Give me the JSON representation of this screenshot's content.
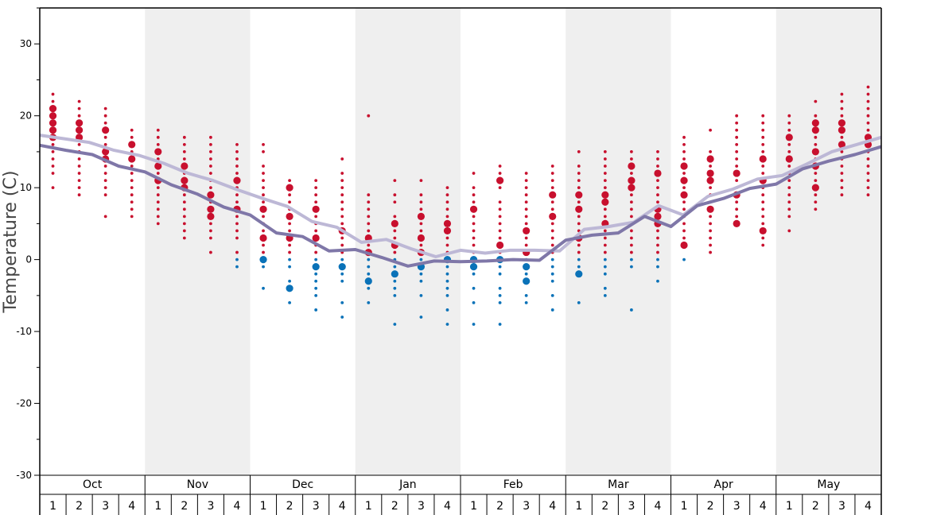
{
  "chart_data": {
    "type": "scatter",
    "ylabel": "Temperature (C)",
    "ylim": [
      -30,
      35
    ],
    "yticks": [
      30,
      20,
      10,
      0,
      -10,
      -20,
      -30
    ],
    "months": [
      "Oct",
      "Nov",
      "Dec",
      "Jan",
      "Feb",
      "Mar",
      "Apr",
      "May"
    ],
    "weeks": [
      "1",
      "2",
      "3",
      "4"
    ],
    "colors": {
      "warm": "#c8102e",
      "cold": "#0a72b8",
      "line_dark": "#7f77a8",
      "line_light": "#bdb8d6",
      "band": "#efefef"
    },
    "lines": [
      {
        "style": "light",
        "values": [
          17.3,
          16.8,
          16.3,
          15.2,
          14.5,
          13.4,
          12.0,
          11.0,
          9.7,
          8.5,
          7.4,
          5.3,
          4.5,
          2.4,
          2.8,
          1.5,
          0.4,
          1.3,
          0.9,
          1.3,
          1.3,
          1.2,
          4.2,
          4.6,
          5.2,
          7.5,
          6.2,
          8.8,
          9.8,
          11.2,
          11.7,
          13.3,
          15.0,
          16.0,
          17.0
        ]
      },
      {
        "style": "dark",
        "values": [
          15.9,
          15.2,
          14.6,
          13.0,
          12.2,
          10.4,
          9.1,
          7.3,
          6.2,
          3.7,
          3.2,
          1.2,
          1.4,
          0.3,
          -0.9,
          -0.2,
          -0.3,
          -0.2,
          0.0,
          -0.1,
          2.7,
          3.4,
          3.7,
          6.0,
          4.6,
          7.5,
          8.5,
          9.9,
          10.5,
          12.6,
          13.7,
          14.6,
          15.7
        ]
      }
    ],
    "dots": [
      {
        "week": 1,
        "values": [
          23,
          22,
          21,
          20,
          19,
          18,
          17,
          16,
          15,
          14,
          13,
          12,
          10
        ],
        "big": [
          21,
          20,
          19,
          18,
          17
        ]
      },
      {
        "week": 2,
        "values": [
          22,
          21,
          20,
          19,
          18,
          17,
          16,
          15,
          14,
          13,
          12,
          11,
          10,
          9
        ],
        "big": [
          19,
          18,
          17
        ]
      },
      {
        "week": 3,
        "values": [
          21,
          20,
          19,
          18,
          17,
          16,
          15,
          14,
          13,
          12,
          11,
          10,
          9,
          6
        ],
        "big": [
          18,
          15,
          14
        ]
      },
      {
        "week": 4,
        "values": [
          18,
          17,
          16,
          15,
          14,
          13,
          12,
          11,
          10,
          9,
          8,
          7,
          6
        ],
        "big": [
          16,
          14
        ]
      },
      {
        "week": 5,
        "values": [
          18,
          17,
          16,
          15,
          14,
          13,
          12,
          11,
          10,
          9,
          8,
          7,
          6,
          5
        ],
        "big": [
          15,
          13,
          11
        ]
      },
      {
        "week": 6,
        "values": [
          17,
          16,
          15,
          14,
          13,
          12,
          11,
          10,
          9,
          8,
          7,
          6,
          5,
          4,
          3
        ],
        "big": [
          13,
          11,
          10
        ]
      },
      {
        "week": 7,
        "values": [
          17,
          16,
          15,
          14,
          13,
          12,
          11,
          10,
          9,
          8,
          7,
          6,
          5,
          4,
          3,
          1
        ],
        "big": [
          9,
          7,
          6
        ]
      },
      {
        "week": 8,
        "values": [
          16,
          15,
          14,
          13,
          12,
          11,
          10,
          9,
          8,
          7,
          6,
          5,
          4,
          3,
          1,
          0,
          -1
        ],
        "big": [
          11,
          7
        ]
      },
      {
        "week": 9,
        "values": [
          16,
          15,
          13,
          12,
          11,
          10,
          9,
          8,
          7,
          6,
          5,
          4,
          3,
          2,
          1,
          0,
          -1,
          -4
        ],
        "big": [
          7,
          3,
          0
        ]
      },
      {
        "week": 10,
        "values": [
          11,
          10,
          9,
          8,
          7,
          6,
          5,
          4,
          3,
          2,
          1,
          0,
          -1,
          -3,
          -4,
          -6
        ],
        "big": [
          10,
          6,
          3,
          -4
        ]
      },
      {
        "week": 11,
        "values": [
          11,
          10,
          9,
          8,
          7,
          6,
          5,
          4,
          3,
          2,
          1,
          0,
          -1,
          -2,
          -3,
          -4,
          -5,
          -7
        ],
        "big": [
          7,
          3,
          -1
        ]
      },
      {
        "week": 12,
        "values": [
          14,
          12,
          11,
          10,
          9,
          8,
          7,
          6,
          5,
          4,
          3,
          2,
          1,
          0,
          -1,
          -2,
          -3,
          -6,
          -8
        ],
        "big": [
          4,
          -1
        ]
      },
      {
        "week": 13,
        "values": [
          20,
          9,
          8,
          7,
          6,
          5,
          4,
          3,
          2,
          1,
          0,
          -1,
          -2,
          -3,
          -4,
          -6
        ],
        "big": [
          3,
          1,
          -3
        ]
      },
      {
        "week": 14,
        "values": [
          11,
          9,
          8,
          6,
          5,
          4,
          3,
          2,
          1,
          0,
          -1,
          -2,
          -3,
          -4,
          -5,
          -9
        ],
        "big": [
          5,
          2,
          -2
        ]
      },
      {
        "week": 15,
        "values": [
          11,
          9,
          8,
          7,
          6,
          5,
          4,
          3,
          2,
          1,
          0,
          -1,
          -2,
          -3,
          -5,
          -8
        ],
        "big": [
          6,
          3,
          1,
          -1
        ]
      },
      {
        "week": 16,
        "values": [
          10,
          9,
          8,
          7,
          6,
          5,
          4,
          3,
          2,
          1,
          0,
          -1,
          -2,
          -3,
          -4,
          -5,
          -7,
          -9
        ],
        "big": [
          5,
          4,
          0
        ]
      },
      {
        "week": 17,
        "values": [
          12,
          10,
          9,
          8,
          7,
          6,
          5,
          4,
          3,
          2,
          1,
          0,
          -1,
          -2,
          -4,
          -6,
          -9
        ],
        "big": [
          7,
          0,
          -1
        ]
      },
      {
        "week": 18,
        "values": [
          13,
          12,
          11,
          10,
          8,
          7,
          6,
          5,
          4,
          3,
          2,
          1,
          0,
          -1,
          -2,
          -4,
          -5,
          -6,
          -9
        ],
        "big": [
          11,
          2,
          0
        ]
      },
      {
        "week": 19,
        "values": [
          12,
          11,
          10,
          9,
          8,
          7,
          6,
          5,
          4,
          3,
          2,
          1,
          0,
          -1,
          -2,
          -3,
          -5,
          -6
        ],
        "big": [
          4,
          1,
          -1,
          -3
        ]
      },
      {
        "week": 20,
        "values": [
          13,
          12,
          11,
          10,
          9,
          8,
          7,
          6,
          5,
          4,
          3,
          2,
          1,
          0,
          -1,
          -2,
          -3,
          -5,
          -7
        ],
        "big": [
          9,
          6
        ]
      },
      {
        "week": 21,
        "values": [
          15,
          13,
          12,
          11,
          10,
          9,
          8,
          7,
          6,
          5,
          4,
          3,
          2,
          1,
          0,
          -1,
          -2,
          -6
        ],
        "big": [
          9,
          7,
          3,
          -2
        ]
      },
      {
        "week": 22,
        "values": [
          15,
          14,
          13,
          12,
          11,
          10,
          9,
          8,
          7,
          6,
          5,
          4,
          3,
          2,
          1,
          0,
          -1,
          -2,
          -4,
          -5
        ],
        "big": [
          9,
          8,
          5
        ]
      },
      {
        "week": 23,
        "values": [
          15,
          14,
          13,
          12,
          11,
          10,
          9,
          8,
          7,
          6,
          5,
          4,
          3,
          2,
          1,
          0,
          -1,
          -7
        ],
        "big": [
          13,
          11,
          10
        ]
      },
      {
        "week": 24,
        "values": [
          15,
          14,
          13,
          12,
          11,
          10,
          9,
          8,
          7,
          6,
          5,
          4,
          3,
          2,
          1,
          0,
          -1,
          -3
        ],
        "big": [
          12,
          7,
          6,
          5
        ]
      },
      {
        "week": 25,
        "values": [
          17,
          16,
          15,
          14,
          13,
          12,
          11,
          10,
          9,
          8,
          7,
          6,
          5,
          4,
          3,
          2,
          0
        ],
        "big": [
          13,
          11,
          9,
          2
        ]
      },
      {
        "week": 26,
        "values": [
          18,
          15,
          14,
          13,
          12,
          11,
          10,
          9,
          8,
          7,
          6,
          5,
          4,
          3,
          2,
          1
        ],
        "big": [
          14,
          12,
          11,
          7
        ]
      },
      {
        "week": 27,
        "values": [
          20,
          19,
          18,
          17,
          16,
          15,
          14,
          13,
          12,
          11,
          10,
          9,
          8,
          7,
          6,
          5
        ],
        "big": [
          12,
          9,
          5
        ]
      },
      {
        "week": 28,
        "values": [
          20,
          19,
          18,
          17,
          16,
          15,
          14,
          13,
          12,
          11,
          10,
          9,
          8,
          7,
          6,
          5,
          4,
          3,
          2
        ],
        "big": [
          14,
          11,
          4
        ]
      },
      {
        "week": 29,
        "values": [
          20,
          19,
          18,
          17,
          16,
          15,
          14,
          13,
          12,
          11,
          10,
          9,
          8,
          7,
          6,
          4
        ],
        "big": [
          17,
          14
        ]
      },
      {
        "week": 30,
        "values": [
          22,
          20,
          19,
          18,
          17,
          16,
          15,
          14,
          13,
          12,
          11,
          10,
          9,
          8,
          7
        ],
        "big": [
          19,
          18,
          15,
          13,
          10
        ]
      },
      {
        "week": 31,
        "values": [
          23,
          22,
          21,
          20,
          19,
          18,
          17,
          16,
          15,
          14,
          13,
          12,
          11,
          10,
          9
        ],
        "big": [
          19,
          18,
          16
        ]
      },
      {
        "week": 32,
        "values": [
          24,
          23,
          22,
          21,
          20,
          19,
          18,
          17,
          16,
          15,
          14,
          13,
          12,
          11,
          10,
          9
        ],
        "big": [
          17,
          16
        ]
      }
    ]
  }
}
